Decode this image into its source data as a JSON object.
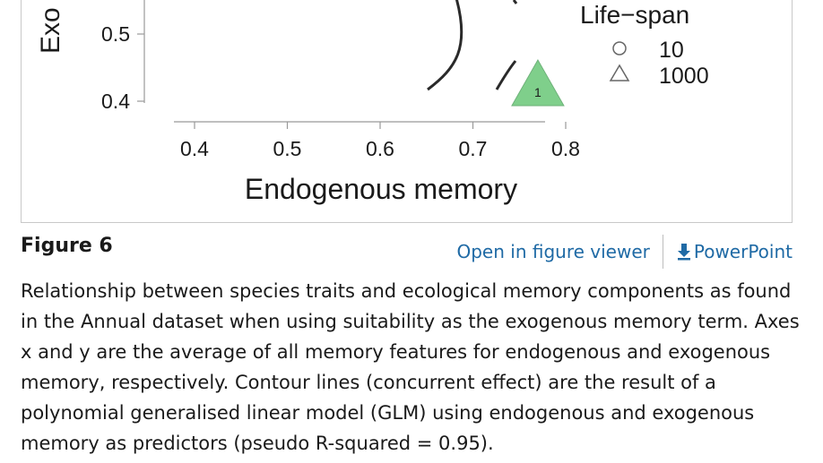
{
  "figure": {
    "label": "Figure 6",
    "actions": {
      "open_viewer": "Open in figure viewer",
      "powerpoint": "PowerPoint"
    },
    "caption": "Relationship between species traits and ecological memory components as found in the Annual dataset when using suitability as the exogenous memory term. Axes x and y are the average of all memory features for endogenous and exogenous memory, respectively. Contour lines (concurrent effect) are the result of a polynomial generalised linear model (GLM) using endogenous and exogenous memory as predictors (pseudo R-squared = 0.95)."
  },
  "chart_data": {
    "type": "scatter",
    "xlabel": "Endogenous memory",
    "ylabel_visible": "Exo",
    "x_ticks": [
      "0.4",
      "0.5",
      "0.6",
      "0.7",
      "0.8"
    ],
    "y_ticks": [
      "0.5",
      "0.4"
    ],
    "xlim": [
      0.37,
      0.82
    ],
    "ylim": [
      0.37,
      0.56
    ],
    "legend": {
      "title": "Life−span",
      "entries": [
        {
          "label": "10",
          "shape": "circle"
        },
        {
          "label": "1000",
          "shape": "triangle"
        }
      ]
    },
    "points": [
      {
        "x": 0.77,
        "y": 0.42,
        "shape": "triangle",
        "label": "1",
        "color": "#7fcf8b"
      }
    ]
  }
}
